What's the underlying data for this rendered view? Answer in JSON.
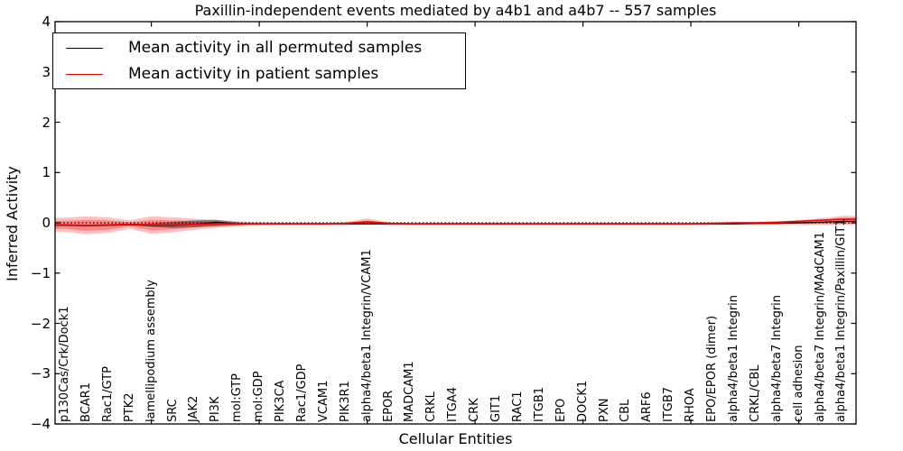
{
  "chart_data": {
    "type": "line",
    "title": "Paxillin-independent events mediated by a4b1 and a4b7 -- 557 samples",
    "xlabel": "Cellular Entities",
    "ylabel": "Inferred Activity",
    "ylim": [
      -4,
      4
    ],
    "ytick_labels": [
      "4",
      "3",
      "2",
      "1",
      "0",
      "−1",
      "−2",
      "−3",
      "−4"
    ],
    "x_major_ticks_at_category_index": [
      4,
      9,
      14,
      19,
      24,
      29,
      34
    ],
    "grid": false,
    "legend_position": "upper-left",
    "zero_line": {
      "style": "dotted",
      "color": "#000000",
      "y": 0
    },
    "categories": [
      "p130Cas/Crk/Dock1",
      "BCAR1",
      "Rac1/GTP",
      "PTK2",
      "lamellipodium assembly",
      "SRC",
      "JAK2",
      "PI3K",
      "mol:GTP",
      "mol:GDP",
      "PIK3CA",
      "Rac1/GDP",
      "VCAM1",
      "PIK3R1",
      "alpha4/beta1 Integrin/VCAM1",
      "EPOR",
      "MADCAM1",
      "CRKL",
      "ITGA4",
      "CRK",
      "GIT1",
      "RAC1",
      "ITGB1",
      "EPO",
      "DOCK1",
      "PXN",
      "CBL",
      "ARF6",
      "ITGB7",
      "RHOA",
      "EPO/EPOR (dimer)",
      "alpha4/beta1 Integrin",
      "CRKL/CBL",
      "alpha4/beta7 Integrin",
      "cell adhesion",
      "alpha4/beta7 Integrin/MAdCAM1",
      "alpha4/beta1 Integrin/Paxillin/GIT1"
    ],
    "series": [
      {
        "name": "Mean activity in all permuted samples",
        "color": "#000000",
        "values": [
          -0.05,
          -0.06,
          -0.05,
          -0.04,
          -0.05,
          -0.05,
          -0.03,
          0.01,
          -0.02,
          -0.02,
          -0.02,
          -0.02,
          -0.02,
          -0.02,
          -0.02,
          -0.02,
          -0.02,
          -0.02,
          -0.02,
          -0.02,
          -0.02,
          -0.02,
          -0.02,
          -0.02,
          -0.02,
          -0.02,
          -0.02,
          -0.02,
          -0.02,
          -0.02,
          -0.02,
          -0.02,
          -0.01,
          -0.01,
          0.0,
          0.01,
          0.03
        ]
      },
      {
        "name": "Mean activity in patient samples",
        "color": "#ff0000",
        "values": [
          -0.04,
          -0.05,
          -0.04,
          -0.03,
          -0.04,
          -0.04,
          -0.03,
          -0.02,
          -0.02,
          -0.02,
          -0.02,
          -0.02,
          -0.02,
          -0.01,
          0.02,
          -0.01,
          -0.02,
          -0.02,
          -0.02,
          -0.02,
          -0.02,
          -0.02,
          -0.02,
          -0.02,
          -0.02,
          -0.02,
          -0.02,
          -0.02,
          -0.02,
          -0.02,
          -0.01,
          0.0,
          0.0,
          0.01,
          0.03,
          0.05,
          0.07
        ]
      }
    ],
    "bands": [
      {
        "name": "patient-std-outer",
        "color": "rgba(255,0,0,0.24)",
        "upper": [
          0.1,
          0.13,
          0.11,
          0.05,
          0.13,
          0.11,
          0.08,
          0.06,
          0.03,
          0.01,
          0.0,
          0.0,
          0.0,
          0.01,
          0.09,
          0.01,
          0.0,
          0.0,
          0.0,
          0.0,
          0.0,
          0.0,
          0.0,
          0.0,
          0.0,
          0.0,
          0.0,
          0.0,
          0.0,
          0.0,
          0.0,
          0.01,
          0.01,
          0.03,
          0.05,
          0.09,
          0.14
        ],
        "lower": [
          -0.18,
          -0.23,
          -0.2,
          -0.12,
          -0.22,
          -0.19,
          -0.14,
          -0.1,
          -0.07,
          -0.05,
          -0.04,
          -0.04,
          -0.04,
          -0.04,
          -0.04,
          -0.04,
          -0.04,
          -0.04,
          -0.04,
          -0.04,
          -0.04,
          -0.04,
          -0.04,
          -0.04,
          -0.04,
          -0.04,
          -0.04,
          -0.04,
          -0.04,
          -0.04,
          -0.04,
          -0.04,
          -0.04,
          -0.04,
          -0.04,
          -0.04,
          -0.04
        ]
      },
      {
        "name": "patient-std-inner",
        "color": "rgba(255,0,0,0.30)",
        "upper": [
          0.04,
          0.06,
          0.05,
          0.01,
          0.06,
          0.05,
          0.03,
          0.02,
          0.0,
          -0.01,
          -0.01,
          -0.01,
          -0.01,
          0.0,
          0.05,
          0.0,
          -0.01,
          -0.01,
          -0.01,
          -0.01,
          -0.01,
          -0.01,
          -0.01,
          -0.01,
          -0.01,
          -0.01,
          -0.01,
          -0.01,
          -0.01,
          -0.01,
          -0.01,
          0.0,
          0.0,
          0.02,
          0.03,
          0.06,
          0.1
        ],
        "lower": [
          -0.12,
          -0.16,
          -0.14,
          -0.07,
          -0.15,
          -0.13,
          -0.09,
          -0.06,
          -0.04,
          -0.03,
          -0.03,
          -0.03,
          -0.03,
          -0.03,
          -0.02,
          -0.03,
          -0.03,
          -0.03,
          -0.03,
          -0.03,
          -0.03,
          -0.03,
          -0.03,
          -0.03,
          -0.03,
          -0.03,
          -0.03,
          -0.03,
          -0.03,
          -0.03,
          -0.03,
          -0.03,
          -0.03,
          -0.02,
          -0.02,
          -0.02,
          -0.02
        ]
      },
      {
        "name": "permuted-band",
        "color": "rgba(45,45,45,0.5)",
        "upper": [
          -0.05,
          -0.06,
          -0.05,
          -0.04,
          -0.01,
          0.02,
          0.05,
          0.06,
          0.01,
          -0.02,
          -0.02,
          -0.02,
          -0.02,
          -0.02,
          -0.02,
          -0.02,
          -0.02,
          -0.02,
          -0.02,
          -0.02,
          -0.02,
          -0.02,
          -0.02,
          -0.02,
          -0.02,
          -0.02,
          -0.02,
          -0.02,
          -0.02,
          -0.02,
          -0.02,
          -0.02,
          -0.01,
          -0.01,
          0.0,
          0.01,
          0.03
        ],
        "lower": [
          -0.05,
          -0.06,
          -0.05,
          -0.04,
          -0.08,
          -0.1,
          -0.09,
          -0.07,
          -0.05,
          -0.02,
          -0.02,
          -0.02,
          -0.02,
          -0.02,
          -0.02,
          -0.02,
          -0.02,
          -0.02,
          -0.02,
          -0.02,
          -0.02,
          -0.02,
          -0.02,
          -0.02,
          -0.02,
          -0.02,
          -0.02,
          -0.02,
          -0.02,
          -0.02,
          -0.02,
          -0.02,
          -0.01,
          -0.01,
          0.0,
          0.01,
          0.03
        ]
      }
    ]
  }
}
